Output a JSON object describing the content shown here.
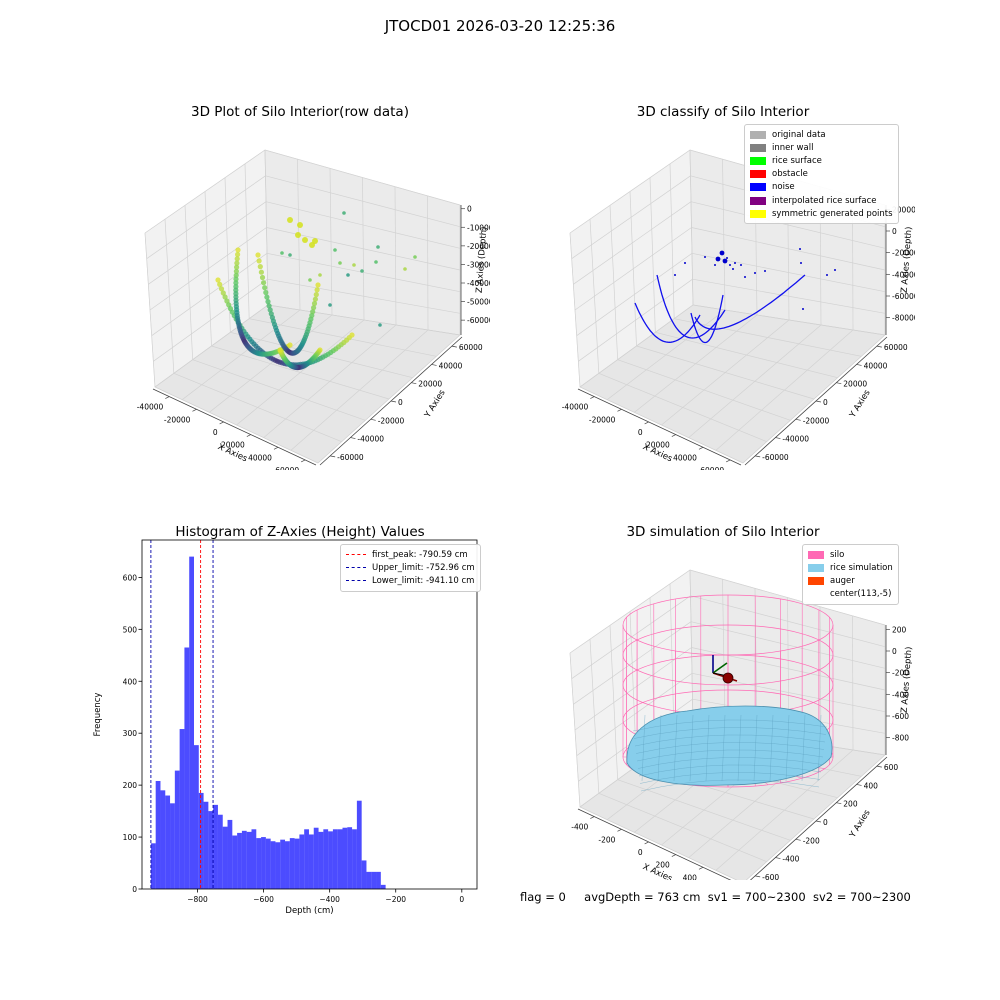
{
  "suptitle": "JTOCD01 2026-03-20 12:25:36",
  "chart_data": [
    {
      "type": "scatter3d",
      "title": "3D Plot of Silo Interior(row data)",
      "xlabel": "X Axies",
      "ylabel": "Y Axies",
      "zlabel": "Z Axies (Depth)",
      "x_ticks": [
        "-40000",
        "-20000",
        "0",
        "20000",
        "40000",
        "60000"
      ],
      "y_ticks": [
        "-60000",
        "-40000",
        "-20000",
        "0",
        "20000",
        "40000",
        "60000"
      ],
      "z_ticks": [
        "0",
        "-10000",
        "-20000",
        "-30000",
        "-40000",
        "-50000",
        "-60000"
      ],
      "colormap": "viridis"
    },
    {
      "type": "scatter3d",
      "title": "3D classify of Silo Interior",
      "xlabel": "X Axies",
      "ylabel": "Y Axies",
      "zlabel": "Z Axies (Depth)",
      "x_ticks": [
        "-40000",
        "-20000",
        "0",
        "20000",
        "40000",
        "60000"
      ],
      "y_ticks": [
        "-60000",
        "-40000",
        "-20000",
        "0",
        "20000",
        "40000",
        "60000"
      ],
      "z_ticks": [
        "20000",
        "0",
        "-20000",
        "-40000",
        "-60000",
        "-80000"
      ],
      "legend": [
        {
          "label": "original data",
          "color": "#b0b0b0"
        },
        {
          "label": "inner wall",
          "color": "#808080"
        },
        {
          "label": "rice surface",
          "color": "#00ff00"
        },
        {
          "label": "obstacle",
          "color": "#ff0000"
        },
        {
          "label": "noise",
          "color": "#0000ff"
        },
        {
          "label": "interpolated rice surface",
          "color": "#800080"
        },
        {
          "label": "symmetric generated points",
          "color": "#ffff00"
        }
      ]
    },
    {
      "type": "bar",
      "title": "Histogram of Z-Axies (Height) Values",
      "xlabel": "Depth (cm)",
      "ylabel": "Frequency",
      "xlim": [
        -968,
        46
      ],
      "ylim": [
        0,
        672
      ],
      "x_ticks": [
        -800,
        -600,
        -400,
        -200,
        0
      ],
      "y_ticks": [
        0,
        100,
        200,
        300,
        400,
        500,
        600
      ],
      "bin_start": -941.1,
      "bin_width": 14.5,
      "values": [
        88,
        208,
        190,
        180,
        165,
        228,
        308,
        465,
        640,
        277,
        185,
        168,
        150,
        162,
        143,
        120,
        133,
        103,
        108,
        112,
        110,
        115,
        98,
        100,
        97,
        92,
        90,
        95,
        92,
        98,
        97,
        105,
        115,
        105,
        118,
        110,
        115,
        111,
        115,
        115,
        118,
        119,
        115,
        170,
        55,
        33,
        33,
        33,
        8
      ],
      "bar_color": "#0000ff",
      "vlines": [
        {
          "label": "first_peak: -790.59 cm",
          "x": -790.59,
          "color": "#ff0000"
        },
        {
          "label": "Upper_limit: -752.96 cm",
          "x": -752.96,
          "color": "#0000aa"
        },
        {
          "label": "Lower_limit: -941.10 cm",
          "x": -941.1,
          "color": "#0000aa"
        }
      ]
    },
    {
      "type": "surface3d",
      "title": "3D simulation of Silo Interior",
      "xlabel": "X Axies",
      "ylabel": "Y Axies",
      "zlabel": "Z Axies (Depth)",
      "x_ticks": [
        "-400",
        "-200",
        "0",
        "200",
        "400",
        "600"
      ],
      "y_ticks": [
        "-600",
        "-400",
        "-200",
        "0",
        "200",
        "400",
        "600"
      ],
      "z_ticks": [
        "200",
        "0",
        "-200",
        "-400",
        "-600",
        "-800"
      ],
      "legend": [
        {
          "label": "silo",
          "color": "#ff69b4"
        },
        {
          "label": "rice simulation",
          "color": "#87ceeb"
        },
        {
          "label": "auger",
          "color": "#ff4500"
        },
        {
          "label": "center(113,-5)",
          "color": ""
        }
      ]
    }
  ],
  "footer": {
    "flag": "flag = 0",
    "avg": "avgDepth = 763 cm",
    "sv1": "sv1 = 700~2300",
    "sv2": "sv2 = 700~2300"
  }
}
